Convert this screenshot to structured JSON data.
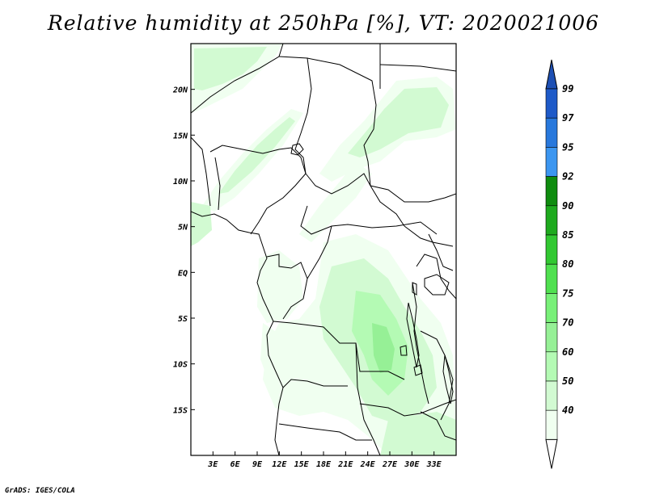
{
  "title": "Relative humidity at 250hPa [%], VT: 2020021006",
  "credit": "GrADS: IGES/COLA",
  "map": {
    "lon_range": [
      0,
      36
    ],
    "lat_range": [
      -20,
      25
    ],
    "lon_ticks": [
      "3E",
      "6E",
      "9E",
      "12E",
      "15E",
      "18E",
      "21E",
      "24E",
      "27E",
      "30E",
      "33E"
    ],
    "lon_tick_values": [
      3,
      6,
      9,
      12,
      15,
      18,
      21,
      24,
      27,
      30,
      33
    ],
    "lat_ticks": [
      "20N",
      "15N",
      "10N",
      "5N",
      "EQ",
      "5S",
      "10S",
      "15S"
    ],
    "lat_tick_values": [
      20,
      15,
      10,
      5,
      0,
      -5,
      -10,
      -15
    ]
  },
  "colorbar": {
    "labels": [
      "99",
      "97",
      "95",
      "92",
      "90",
      "85",
      "80",
      "75",
      "70",
      "60",
      "50",
      "40"
    ],
    "colors": [
      "#1e5ac8",
      "#2878dc",
      "#3c96f0",
      "#0f8c0f",
      "#1eaa1e",
      "#32c832",
      "#50e050",
      "#78f078",
      "#96f096",
      "#b4fab4",
      "#d2fad2",
      "#f0fff0"
    ],
    "top_arrow_color": "#1e50b4",
    "bottom_arrow_color": "#ffffff"
  },
  "humidity_colors": {
    "c40": "#f0fff0",
    "c50": "#d2fad2",
    "c60": "#b4fab4",
    "c70": "#96f096"
  }
}
